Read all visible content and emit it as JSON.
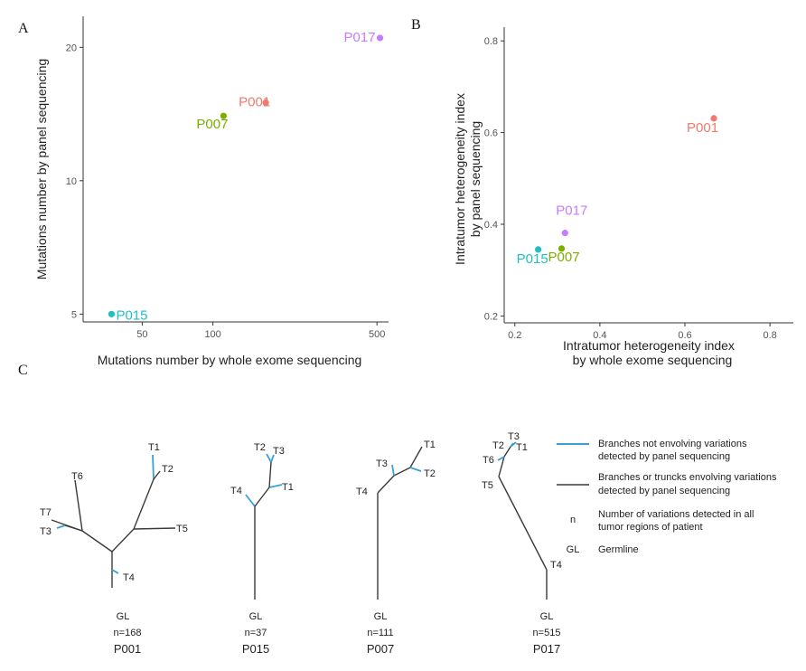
{
  "panels": {
    "a": "A",
    "b": "B",
    "c": "C"
  },
  "chart_data": [
    {
      "type": "scatter",
      "panel": "A",
      "xlabel": "Mutations number by whole exome sequencing",
      "ylabel": "Mutations number by panel sequencing",
      "x_scale": "log",
      "y_scale": "log",
      "xlim": [
        28,
        560
      ],
      "ylim": [
        4.8,
        23.5
      ],
      "xticks": [
        50,
        100,
        500
      ],
      "yticks": [
        5,
        10,
        20
      ],
      "grid": false,
      "points": [
        {
          "label": "P015",
          "x": 37,
          "y": 5,
          "color": "#1fbfc4"
        },
        {
          "label": "P007",
          "x": 111,
          "y": 14,
          "color": "#7cae00"
        },
        {
          "label": "P001",
          "x": 168,
          "y": 15,
          "color": "#f07a6d"
        },
        {
          "label": "P017",
          "x": 515,
          "y": 21,
          "color": "#c77cff"
        }
      ]
    },
    {
      "type": "scatter",
      "panel": "B",
      "xlabel": "Intratumor heterogeneity index by whole exome sequencing",
      "xlabel_lines": [
        "Intratumor heterogeneity index",
        "by whole exome sequencing"
      ],
      "ylabel": "Intratumor heterogeneity index by panel sequencing",
      "ylabel_lines": [
        "Intratumor heterogeneity index",
        "by panel sequencing"
      ],
      "xlim": [
        0.175,
        0.855
      ],
      "ylim": [
        0.185,
        0.83
      ],
      "xticks": [
        0.2,
        0.4,
        0.6,
        0.8
      ],
      "yticks": [
        0.2,
        0.4,
        0.6,
        0.8
      ],
      "grid": false,
      "points": [
        {
          "label": "P015",
          "x": 0.255,
          "y": 0.345,
          "color": "#1fbfc4"
        },
        {
          "label": "P007",
          "x": 0.31,
          "y": 0.347,
          "color": "#7cae00"
        },
        {
          "label": "P017",
          "x": 0.318,
          "y": 0.381,
          "color": "#c77cff"
        },
        {
          "label": "P001",
          "x": 0.668,
          "y": 0.631,
          "color": "#f07a6d"
        }
      ]
    }
  ],
  "trees": [
    {
      "name": "P001",
      "n": "n=168",
      "gl": "GL",
      "nodes": [
        "T1",
        "T2",
        "T3",
        "T4",
        "T5",
        "T6",
        "T7"
      ]
    },
    {
      "name": "P015",
      "n": "n=37",
      "gl": "GL",
      "nodes": [
        "T1",
        "T2",
        "T3",
        "T4"
      ]
    },
    {
      "name": "P007",
      "n": "n=111",
      "gl": "GL",
      "nodes": [
        "T1",
        "T2",
        "T3",
        "T4"
      ]
    },
    {
      "name": "P017",
      "n": "n=515",
      "gl": "GL",
      "nodes": [
        "T1",
        "T2",
        "T3",
        "T4",
        "T5",
        "T6"
      ]
    }
  ],
  "legend": {
    "blue_line": [
      "Branches not envolving variations",
      "detected by panel sequencing"
    ],
    "dark_line": [
      "Branches or truncks envolving variations",
      "detected by panel sequencing"
    ],
    "n_symbol": "n",
    "n_text": [
      "Number of variations detected in all",
      "tumor regions of patient"
    ],
    "gl_symbol": "GL",
    "gl_text": "Germline",
    "blue_color": "#3a9fd6",
    "dark_color": "#3a3a3a"
  }
}
